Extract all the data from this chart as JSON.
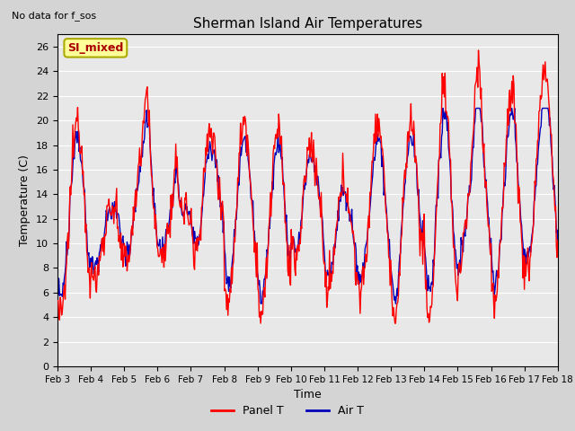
{
  "title": "Sherman Island Air Temperatures",
  "subtitle": "No data for f_sos",
  "xlabel": "Time",
  "ylabel": "Temperature (C)",
  "ylim": [
    0,
    27
  ],
  "yticks": [
    0,
    2,
    4,
    6,
    8,
    10,
    12,
    14,
    16,
    18,
    20,
    22,
    24,
    26
  ],
  "xtick_labels": [
    "Feb 3",
    "Feb 4",
    "Feb 5",
    "Feb 6",
    "Feb 7",
    "Feb 8",
    "Feb 9",
    "Feb 10",
    "Feb 11",
    "Feb 12",
    "Feb 13",
    "Feb 14",
    "Feb 15",
    "Feb 16",
    "Feb 17",
    "Feb 18"
  ],
  "legend_label1": "Panel T",
  "legend_label2": "Air T",
  "color1": "#ff0000",
  "color2": "#0000bb",
  "annotation_text": "SI_mixed",
  "annotation_bg": "#ffff99",
  "annotation_border": "#aaaa00",
  "annotation_text_color": "#aa0000",
  "fig_facecolor": "#d4d4d4",
  "ax_facecolor": "#e8e8e8",
  "grid_color": "#ffffff",
  "subtitle_fontsize": 8,
  "title_fontsize": 11,
  "axis_label_fontsize": 9,
  "tick_fontsize": 8,
  "legend_fontsize": 9,
  "linewidth": 1.0
}
